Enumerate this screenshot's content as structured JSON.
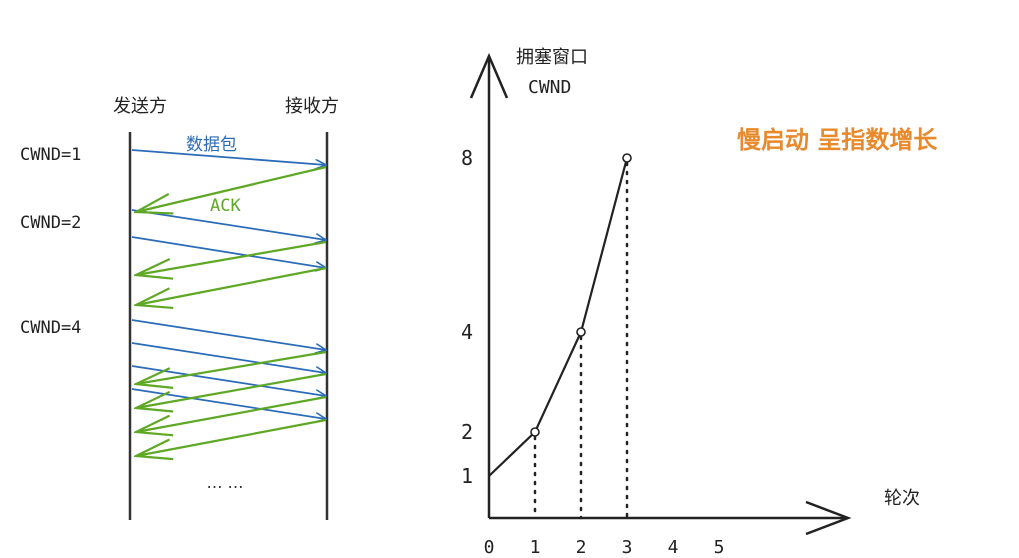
{
  "left_diagram": {
    "sender_label": "发送方",
    "receiver_label": "接收方",
    "data_packet_label": "数据包",
    "ack_label": "ACK",
    "cwnd_labels": [
      "CWND=1",
      "CWND=2",
      "CWND=4"
    ],
    "ellipsis": "… …",
    "colors": {
      "data": "#2b6cb8",
      "ack": "#5fa826",
      "line": "#333333"
    }
  },
  "right_chart": {
    "y_axis_title_cn": "拥塞窗口",
    "y_axis_title_en": "CWND",
    "x_axis_title": "轮次",
    "annotation": "慢启动 呈指数增长",
    "annotation_color": "#e8892b"
  },
  "chart_data": {
    "type": "line",
    "title": "",
    "xlabel": "轮次",
    "ylabel": "拥塞窗口 CWND",
    "x_ticks": [
      "0",
      "1",
      "2",
      "3",
      "4",
      "5"
    ],
    "y_ticks": [
      "1",
      "2",
      "4",
      "8"
    ],
    "series": [
      {
        "x": [
          0,
          1,
          2,
          3
        ],
        "y": [
          1,
          2,
          4,
          8
        ]
      }
    ]
  }
}
